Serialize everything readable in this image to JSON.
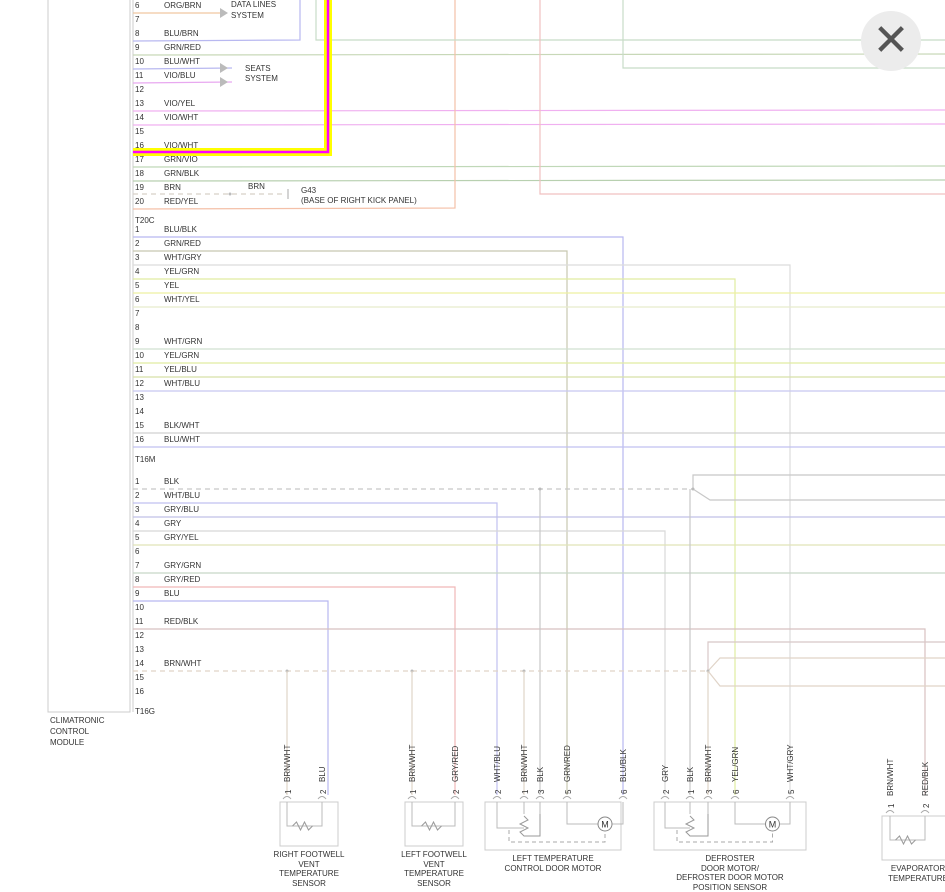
{
  "module": {
    "name": "CLIMATRONIC\nCONTROL\nMODULE",
    "name_lines": [
      "CLIMATRONIC",
      "CONTROL",
      "MODULE"
    ]
  },
  "connectors": [
    {
      "id": "T20C",
      "pins": [
        {
          "pin": "6",
          "wire": "ORG/BRN",
          "color": "#f0c8a0"
        },
        {
          "pin": "7",
          "wire": "",
          "color": ""
        },
        {
          "pin": "8",
          "wire": "BLU/BRN",
          "color": "#b8b8f0"
        },
        {
          "pin": "9",
          "wire": "GRN/RED",
          "color": "#c8d8b8"
        },
        {
          "pin": "10",
          "wire": "BLU/WHT",
          "color": "#b8b8f0"
        },
        {
          "pin": "11",
          "wire": "VIO/BLU",
          "color": "#e8a8f0"
        },
        {
          "pin": "12",
          "wire": "",
          "color": ""
        },
        {
          "pin": "13",
          "wire": "VIO/YEL",
          "color": "#f0b0f0"
        },
        {
          "pin": "14",
          "wire": "VIO/WHT",
          "color": "#f0b0f0"
        },
        {
          "pin": "15",
          "wire": "",
          "color": ""
        },
        {
          "pin": "16",
          "wire": "VIO/WHT",
          "color": "#ff00ff"
        },
        {
          "pin": "17",
          "wire": "GRN/VIO",
          "color": "#c0d8b8"
        },
        {
          "pin": "18",
          "wire": "GRN/BLK",
          "color": "#b8d0b0"
        },
        {
          "pin": "19",
          "wire": "BRN",
          "color": "#e0d0c0"
        },
        {
          "pin": "20",
          "wire": "RED/YEL",
          "color": "#f4c0a8"
        }
      ]
    },
    {
      "id": "T16M",
      "pins": [
        {
          "pin": "1",
          "wire": "BLU/BLK",
          "color": "#b8b8f0"
        },
        {
          "pin": "2",
          "wire": "GRN/RED",
          "color": "#c8c8b0"
        },
        {
          "pin": "3",
          "wire": "WHT/GRY",
          "color": "#dcdcdc"
        },
        {
          "pin": "4",
          "wire": "YEL/GRN",
          "color": "#e0eca0"
        },
        {
          "pin": "5",
          "wire": "YEL",
          "color": "#eef0a0"
        },
        {
          "pin": "6",
          "wire": "WHT/YEL",
          "color": "#e8eccc"
        },
        {
          "pin": "7",
          "wire": "",
          "color": ""
        },
        {
          "pin": "8",
          "wire": "",
          "color": ""
        },
        {
          "pin": "9",
          "wire": "WHT/GRN",
          "color": "#d0e0d0"
        },
        {
          "pin": "10",
          "wire": "YEL/GRN",
          "color": "#e0eca0"
        },
        {
          "pin": "11",
          "wire": "YEL/BLU",
          "color": "#d8e0a8"
        },
        {
          "pin": "12",
          "wire": "WHT/BLU",
          "color": "#c8c8f0"
        },
        {
          "pin": "13",
          "wire": "",
          "color": ""
        },
        {
          "pin": "14",
          "wire": "",
          "color": ""
        },
        {
          "pin": "15",
          "wire": "BLK/WHT",
          "color": "#d0d0d0"
        },
        {
          "pin": "16",
          "wire": "BLU/WHT",
          "color": "#c0c0f0"
        }
      ]
    },
    {
      "id": "T16G",
      "pins": [
        {
          "pin": "1",
          "wire": "BLK",
          "color": "#c8c8c8"
        },
        {
          "pin": "2",
          "wire": "WHT/BLU",
          "color": "#c0c0f0"
        },
        {
          "pin": "3",
          "wire": "GRY/BLU",
          "color": "#c0c0e8"
        },
        {
          "pin": "4",
          "wire": "GRY",
          "color": "#d8d8d8"
        },
        {
          "pin": "5",
          "wire": "GRY/YEL",
          "color": "#e0e4b8"
        },
        {
          "pin": "6",
          "wire": "",
          "color": ""
        },
        {
          "pin": "7",
          "wire": "GRY/GRN",
          "color": "#c8d8c8"
        },
        {
          "pin": "8",
          "wire": "GRY/RED",
          "color": "#f0b8b8"
        },
        {
          "pin": "9",
          "wire": "BLU",
          "color": "#b8b8f0"
        },
        {
          "pin": "10",
          "wire": "",
          "color": ""
        },
        {
          "pin": "11",
          "wire": "RED/BLK",
          "color": "#d8c0c0"
        },
        {
          "pin": "12",
          "wire": "",
          "color": ""
        },
        {
          "pin": "13",
          "wire": "",
          "color": ""
        },
        {
          "pin": "14",
          "wire": "BRN/WHT",
          "color": "#e0d4c8"
        },
        {
          "pin": "15",
          "wire": "",
          "color": ""
        },
        {
          "pin": "16",
          "wire": "",
          "color": ""
        }
      ]
    }
  ],
  "destinations": {
    "data_lines": "DATA LINES\nSYSTEM",
    "data_lines_l1": "DATA LINES",
    "data_lines_l2": "SYSTEM",
    "seats_l1": "SEATS",
    "seats_l2": "SYSTEM",
    "ground_wire": "BRN",
    "ground_id": "G43",
    "ground_loc": "(BASE OF RIGHT KICK PANEL)"
  },
  "components": [
    {
      "caption": [
        "RIGHT FOOTWELL",
        "VENT",
        "TEMPERATURE",
        "SENSOR"
      ],
      "pins": [
        {
          "num": "1",
          "wire": "BRN/WHT"
        },
        {
          "num": "2",
          "wire": "BLU"
        }
      ]
    },
    {
      "caption": [
        "LEFT FOOTWELL",
        "VENT",
        "TEMPERATURE",
        "SENSOR"
      ],
      "pins": [
        {
          "num": "1",
          "wire": "BRN/WHT"
        },
        {
          "num": "2",
          "wire": "GRY/RED"
        }
      ]
    },
    {
      "caption": [
        "LEFT TEMPERATURE",
        "CONTROL DOOR MOTOR"
      ],
      "pins": [
        {
          "num": "2",
          "wire": "WHT/BLU"
        },
        {
          "num": "1",
          "wire": "BRN/WHT"
        },
        {
          "num": "3",
          "wire": "BLK"
        },
        {
          "num": "5",
          "wire": "GRN/RED"
        },
        {
          "num": "6",
          "wire": "BLU/BLK"
        }
      ]
    },
    {
      "caption": [
        "DEFROSTER",
        "DOOR MOTOR/",
        "DEFROSTER DOOR MOTOR",
        "POSITION SENSOR"
      ],
      "pins": [
        {
          "num": "2",
          "wire": "GRY"
        },
        {
          "num": "1",
          "wire": "BLK"
        },
        {
          "num": "3",
          "wire": "BRN/WHT"
        },
        {
          "num": "6",
          "wire": "YEL/GRN"
        },
        {
          "num": "5",
          "wire": "WHT/GRY"
        }
      ]
    },
    {
      "caption": [
        "EVAPORATOR",
        "TEMPERATURE"
      ],
      "pins": [
        {
          "num": "1",
          "wire": "BRN/WHT"
        },
        {
          "num": "2",
          "wire": "RED/BLK"
        }
      ]
    }
  ],
  "motor_symbol": "M",
  "highlight_colors": {
    "outer": "#ffff00",
    "inner": "#ff00ff"
  },
  "close_button": {
    "icon": "close-icon",
    "glyph": "✕"
  }
}
